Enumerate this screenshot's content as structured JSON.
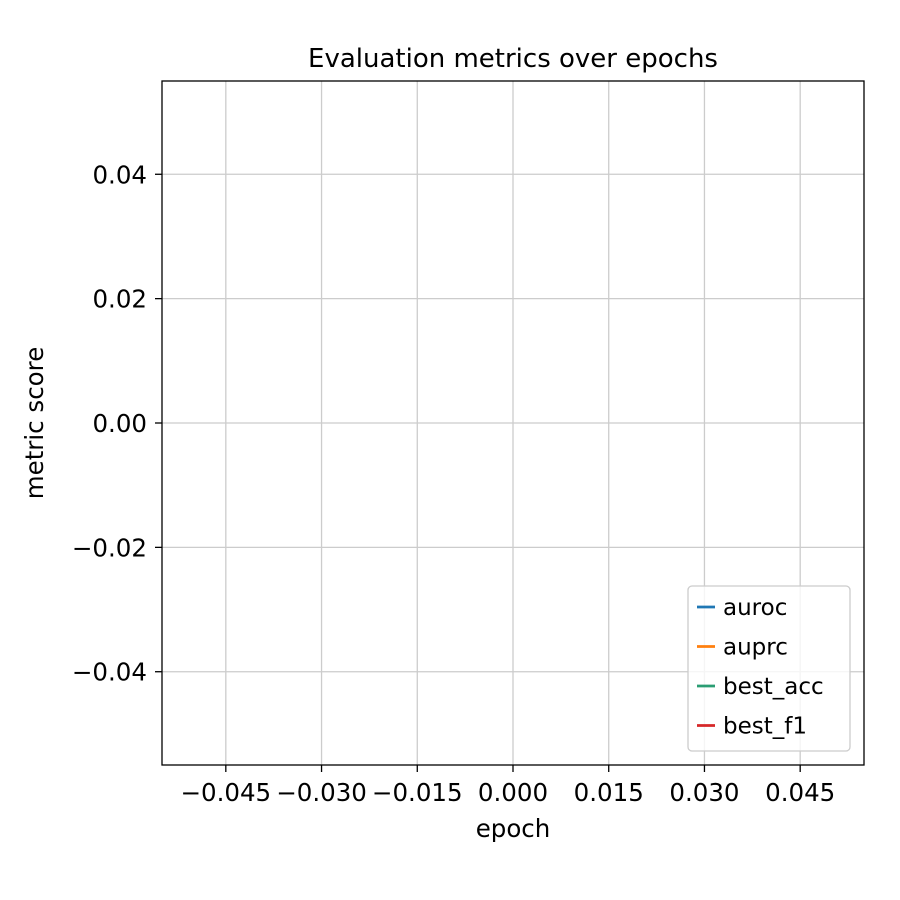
{
  "chart_data": {
    "type": "line",
    "title": "Evaluation metrics over epochs",
    "xlabel": "epoch",
    "ylabel": "metric score",
    "xlim": [
      -0.055,
      0.055
    ],
    "ylim": [
      -0.055,
      0.055
    ],
    "x_ticks": [
      -0.045,
      -0.03,
      -0.015,
      0.0,
      0.015,
      0.03,
      0.045
    ],
    "x_tick_labels": [
      "−0.045",
      "−0.030",
      "−0.015",
      "0.000",
      "0.015",
      "0.030",
      "0.045"
    ],
    "y_ticks": [
      0.04,
      0.02,
      0.0,
      -0.02,
      -0.04
    ],
    "y_tick_labels": [
      "0.04",
      "0.02",
      "0.00",
      "−0.02",
      "−0.04"
    ],
    "grid": true,
    "legend_position": "lower-right",
    "series": [
      {
        "name": "auroc",
        "color": "#1f77b4",
        "x": [],
        "y": []
      },
      {
        "name": "auprc",
        "color": "#ff7f0e",
        "x": [],
        "y": []
      },
      {
        "name": "best_acc",
        "color": "#2a9d73",
        "x": [],
        "y": []
      },
      {
        "name": "best_f1",
        "color": "#d62728",
        "x": [],
        "y": []
      }
    ]
  }
}
